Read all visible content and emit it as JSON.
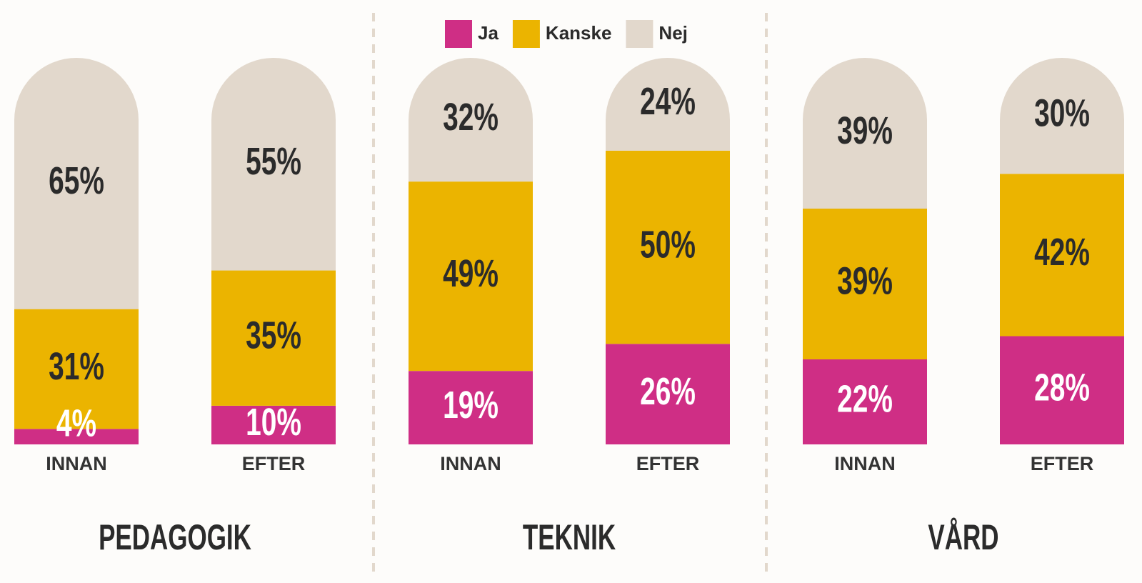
{
  "chart_data": {
    "type": "stacked_bar",
    "groups": [
      "PEDAGOGIK",
      "TEKNIK",
      "VÅRD"
    ],
    "categories": [
      "INNAN",
      "EFTER",
      "INNAN",
      "EFTER",
      "INNAN",
      "EFTER"
    ],
    "ylim": [
      0,
      100
    ],
    "series": [
      {
        "name": "Ja",
        "color": "#cf2e85",
        "values": [
          4,
          10,
          19,
          26,
          22,
          28
        ],
        "value_labels": [
          "4%",
          "10%",
          "19%",
          "26%",
          "22%",
          "28%"
        ]
      },
      {
        "name": "Kanske",
        "color": "#ebb400",
        "values": [
          31,
          35,
          49,
          50,
          39,
          42
        ],
        "value_labels": [
          "31%",
          "35%",
          "49%",
          "50%",
          "39%",
          "42%"
        ]
      },
      {
        "name": "Nej",
        "color": "#e2d8cc",
        "values": [
          65,
          55,
          32,
          24,
          39,
          30
        ],
        "value_labels": [
          "65%",
          "55%",
          "32%",
          "24%",
          "39%",
          "30%"
        ]
      }
    ]
  }
}
